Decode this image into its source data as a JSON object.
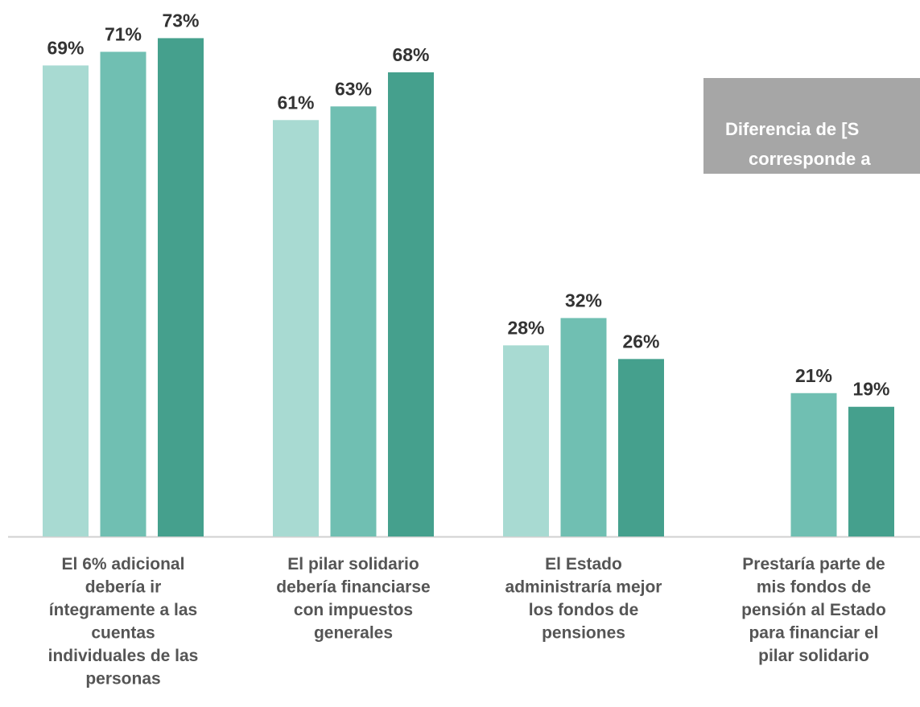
{
  "chart_data": {
    "type": "bar",
    "categories": [
      "El 6% adicional\ndebería ir\níntegramente a las\ncuentas\nindividuales de las\npersonas",
      "El pilar solidario\ndebería financiarse\ncon impuestos\ngenerales",
      "El Estado\nadministraría mejor\nlos fondos de\npensiones",
      "Prestaría parte de\nmis fondos de\npensión al Estado\npara financiar el\npilar solidario"
    ],
    "series": [
      {
        "color": "#a8dad2",
        "values": [
          69,
          61,
          28,
          null
        ],
        "value_labels": [
          "69%",
          "61%",
          "28%",
          null
        ]
      },
      {
        "color": "#70bfb2",
        "values": [
          71,
          63,
          32,
          21
        ],
        "value_labels": [
          "71%",
          "63%",
          "32%",
          "21%"
        ]
      },
      {
        "color": "#45a08d",
        "values": [
          73,
          68,
          26,
          19
        ],
        "value_labels": [
          "73%",
          "68%",
          "26%",
          "19%"
        ]
      }
    ],
    "ylim": [
      0,
      78
    ],
    "annotation": [
      "Diferencia de [S",
      "corresponde a"
    ]
  }
}
